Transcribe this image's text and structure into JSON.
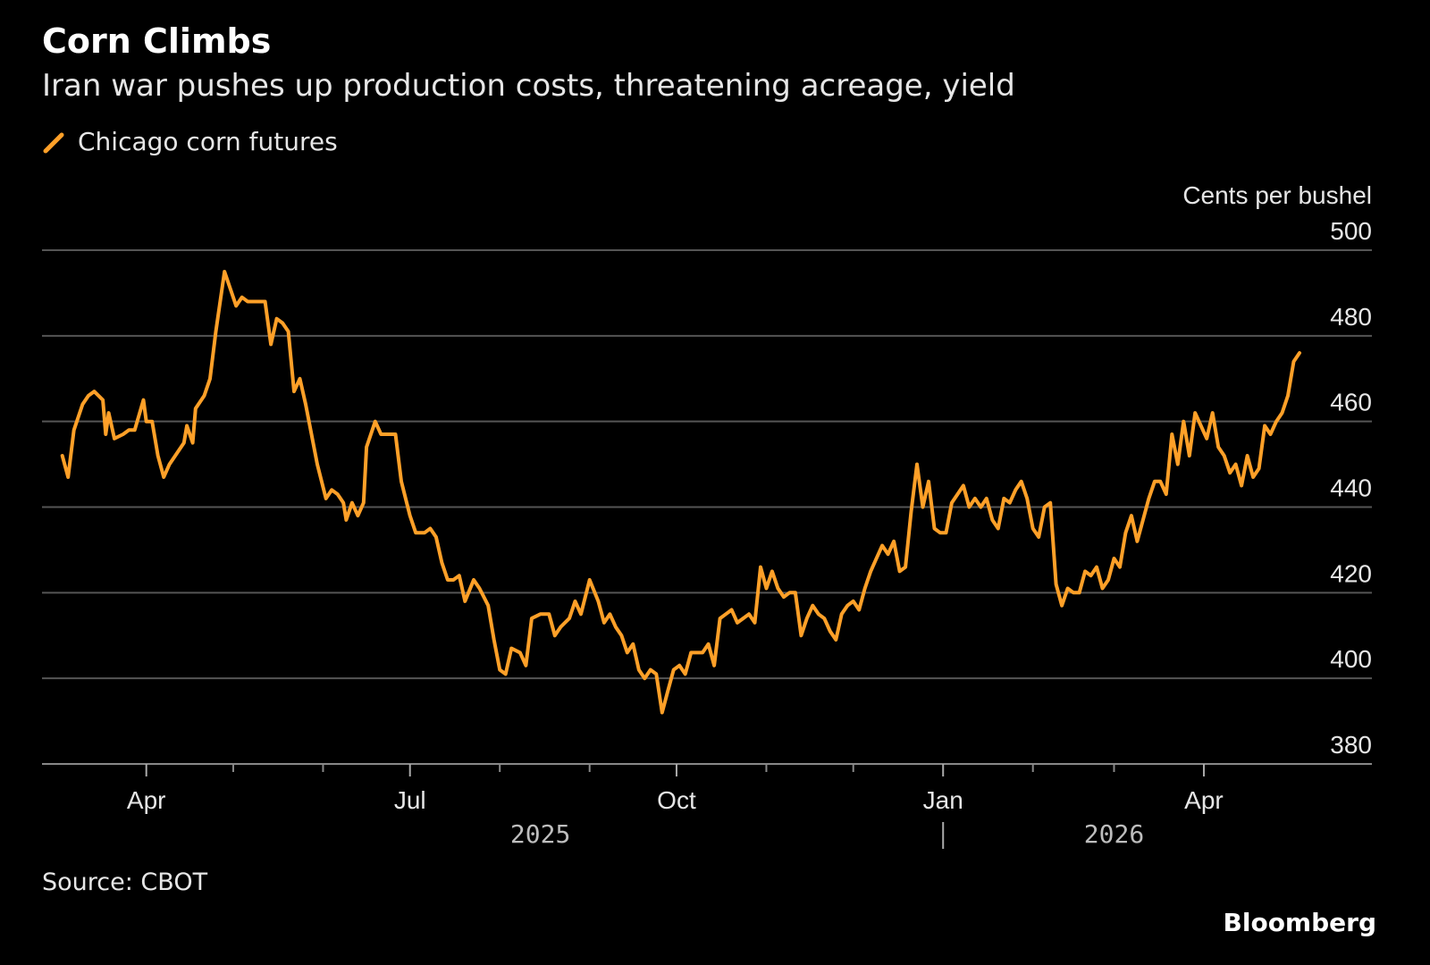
{
  "header": {
    "title": "Corn Climbs",
    "subtitle": "Iran war pushes up production costs, threatening acreage, yield"
  },
  "footer": {
    "source": "Source: CBOT",
    "brand": "Bloomberg"
  },
  "colors": {
    "background": "#000000",
    "series": "#ffa028",
    "grid": "#555555",
    "text": "#e6e6e6"
  },
  "chart_data": {
    "type": "line",
    "title": "Corn Climbs",
    "subtitle": "Iran war pushes up production costs, threatening acreage, yield",
    "ylabel": "Cents per bushel",
    "xlabel": "",
    "ylim": [
      380,
      500
    ],
    "y_ticks": [
      380,
      400,
      420,
      440,
      460,
      480,
      500
    ],
    "y_axis_side": "right",
    "grid": true,
    "legend_placement": "top-left",
    "x_range": [
      "2025-02-24",
      "2026-05-29"
    ],
    "x_ticks": [
      {
        "date": "2025-04-01",
        "label": "Apr"
      },
      {
        "date": "2025-07-01",
        "label": "Jul"
      },
      {
        "date": "2025-10-01",
        "label": "Oct"
      },
      {
        "date": "2026-01-01",
        "label": "Jan"
      },
      {
        "date": "2026-04-01",
        "label": "Apr"
      }
    ],
    "minor_ticks": [
      "2025-05-01",
      "2025-06-01",
      "2025-08-01",
      "2025-09-01",
      "2025-11-01",
      "2025-12-01",
      "2026-02-01",
      "2026-03-01"
    ],
    "year_labels": [
      {
        "label": "2025",
        "center": "2025-08-15"
      },
      {
        "label": "2026",
        "center": "2026-03-01"
      }
    ],
    "year_divider": "2026-01-01",
    "series": [
      {
        "name": "Chicago corn futures",
        "points": [
          [
            "2025-03-03",
            452
          ],
          [
            "2025-03-05",
            447
          ],
          [
            "2025-03-07",
            458
          ],
          [
            "2025-03-10",
            464
          ],
          [
            "2025-03-12",
            466
          ],
          [
            "2025-03-14",
            467
          ],
          [
            "2025-03-17",
            465
          ],
          [
            "2025-03-18",
            457
          ],
          [
            "2025-03-19",
            462
          ],
          [
            "2025-03-21",
            456
          ],
          [
            "2025-03-24",
            457
          ],
          [
            "2025-03-26",
            458
          ],
          [
            "2025-03-28",
            458
          ],
          [
            "2025-03-31",
            465
          ],
          [
            "2025-04-01",
            460
          ],
          [
            "2025-04-03",
            460
          ],
          [
            "2025-04-05",
            452
          ],
          [
            "2025-04-07",
            447
          ],
          [
            "2025-04-09",
            450
          ],
          [
            "2025-04-11",
            452
          ],
          [
            "2025-04-14",
            455
          ],
          [
            "2025-04-15",
            459
          ],
          [
            "2025-04-17",
            455
          ],
          [
            "2025-04-18",
            463
          ],
          [
            "2025-04-21",
            466
          ],
          [
            "2025-04-23",
            470
          ],
          [
            "2025-04-25",
            481
          ],
          [
            "2025-04-28",
            495
          ],
          [
            "2025-04-30",
            491
          ],
          [
            "2025-05-02",
            487
          ],
          [
            "2025-05-04",
            489
          ],
          [
            "2025-05-06",
            488
          ],
          [
            "2025-05-08",
            488
          ],
          [
            "2025-05-12",
            488
          ],
          [
            "2025-05-14",
            478
          ],
          [
            "2025-05-16",
            484
          ],
          [
            "2025-05-18",
            483
          ],
          [
            "2025-05-20",
            481
          ],
          [
            "2025-05-22",
            467
          ],
          [
            "2025-05-24",
            470
          ],
          [
            "2025-05-26",
            464
          ],
          [
            "2025-05-28",
            457
          ],
          [
            "2025-05-30",
            450
          ],
          [
            "2025-06-02",
            442
          ],
          [
            "2025-06-04",
            444
          ],
          [
            "2025-06-06",
            443
          ],
          [
            "2025-06-08",
            441
          ],
          [
            "2025-06-09",
            437
          ],
          [
            "2025-06-11",
            441
          ],
          [
            "2025-06-13",
            438
          ],
          [
            "2025-06-15",
            441
          ],
          [
            "2025-06-16",
            454
          ],
          [
            "2025-06-19",
            460
          ],
          [
            "2025-06-21",
            457
          ],
          [
            "2025-06-24",
            457
          ],
          [
            "2025-06-26",
            457
          ],
          [
            "2025-06-28",
            446
          ],
          [
            "2025-07-01",
            438
          ],
          [
            "2025-07-03",
            434
          ],
          [
            "2025-07-06",
            434
          ],
          [
            "2025-07-08",
            435
          ],
          [
            "2025-07-10",
            433
          ],
          [
            "2025-07-12",
            427
          ],
          [
            "2025-07-14",
            423
          ],
          [
            "2025-07-16",
            423
          ],
          [
            "2025-07-18",
            424
          ],
          [
            "2025-07-20",
            418
          ],
          [
            "2025-07-23",
            423
          ],
          [
            "2025-07-25",
            421
          ],
          [
            "2025-07-28",
            417
          ],
          [
            "2025-07-30",
            409
          ],
          [
            "2025-08-01",
            402
          ],
          [
            "2025-08-03",
            401
          ],
          [
            "2025-08-05",
            407
          ],
          [
            "2025-08-08",
            406
          ],
          [
            "2025-08-10",
            403
          ],
          [
            "2025-08-12",
            414
          ],
          [
            "2025-08-15",
            415
          ],
          [
            "2025-08-18",
            415
          ],
          [
            "2025-08-20",
            410
          ],
          [
            "2025-08-22",
            412
          ],
          [
            "2025-08-25",
            414
          ],
          [
            "2025-08-27",
            418
          ],
          [
            "2025-08-29",
            415
          ],
          [
            "2025-09-01",
            423
          ],
          [
            "2025-09-04",
            418
          ],
          [
            "2025-09-06",
            413
          ],
          [
            "2025-09-08",
            415
          ],
          [
            "2025-09-10",
            412
          ],
          [
            "2025-09-12",
            410
          ],
          [
            "2025-09-14",
            406
          ],
          [
            "2025-09-16",
            408
          ],
          [
            "2025-09-18",
            402
          ],
          [
            "2025-09-20",
            400
          ],
          [
            "2025-09-22",
            402
          ],
          [
            "2025-09-24",
            401
          ],
          [
            "2025-09-26",
            392
          ],
          [
            "2025-09-28",
            397
          ],
          [
            "2025-09-30",
            402
          ],
          [
            "2025-10-02",
            403
          ],
          [
            "2025-10-04",
            401
          ],
          [
            "2025-10-06",
            406
          ],
          [
            "2025-10-08",
            406
          ],
          [
            "2025-10-10",
            406
          ],
          [
            "2025-10-12",
            408
          ],
          [
            "2025-10-14",
            403
          ],
          [
            "2025-10-16",
            414
          ],
          [
            "2025-10-18",
            415
          ],
          [
            "2025-10-20",
            416
          ],
          [
            "2025-10-22",
            413
          ],
          [
            "2025-10-24",
            414
          ],
          [
            "2025-10-26",
            415
          ],
          [
            "2025-10-28",
            413
          ],
          [
            "2025-10-30",
            426
          ],
          [
            "2025-11-01",
            421
          ],
          [
            "2025-11-03",
            425
          ],
          [
            "2025-11-05",
            421
          ],
          [
            "2025-11-07",
            419
          ],
          [
            "2025-11-09",
            420
          ],
          [
            "2025-11-11",
            420
          ],
          [
            "2025-11-13",
            410
          ],
          [
            "2025-11-15",
            414
          ],
          [
            "2025-11-17",
            417
          ],
          [
            "2025-11-19",
            415
          ],
          [
            "2025-11-21",
            414
          ],
          [
            "2025-11-23",
            411
          ],
          [
            "2025-11-25",
            409
          ],
          [
            "2025-11-27",
            415
          ],
          [
            "2025-11-29",
            417
          ],
          [
            "2025-12-01",
            418
          ],
          [
            "2025-12-03",
            416
          ],
          [
            "2025-12-05",
            421
          ],
          [
            "2025-12-07",
            425
          ],
          [
            "2025-12-09",
            428
          ],
          [
            "2025-12-11",
            431
          ],
          [
            "2025-12-13",
            429
          ],
          [
            "2025-12-15",
            432
          ],
          [
            "2025-12-17",
            425
          ],
          [
            "2025-12-19",
            426
          ],
          [
            "2025-12-21",
            439
          ],
          [
            "2025-12-23",
            450
          ],
          [
            "2025-12-25",
            440
          ],
          [
            "2025-12-27",
            446
          ],
          [
            "2025-12-29",
            435
          ],
          [
            "2025-12-31",
            434
          ],
          [
            "2026-01-02",
            434
          ],
          [
            "2026-01-04",
            441
          ],
          [
            "2026-01-06",
            443
          ],
          [
            "2026-01-08",
            445
          ],
          [
            "2026-01-10",
            440
          ],
          [
            "2026-01-12",
            442
          ],
          [
            "2026-01-14",
            440
          ],
          [
            "2026-01-16",
            442
          ],
          [
            "2026-01-18",
            437
          ],
          [
            "2026-01-20",
            435
          ],
          [
            "2026-01-22",
            442
          ],
          [
            "2026-01-24",
            441
          ],
          [
            "2026-01-26",
            444
          ],
          [
            "2026-01-28",
            446
          ],
          [
            "2026-01-30",
            442
          ],
          [
            "2026-02-01",
            435
          ],
          [
            "2026-02-03",
            433
          ],
          [
            "2026-02-05",
            440
          ],
          [
            "2026-02-07",
            441
          ],
          [
            "2026-02-09",
            422
          ],
          [
            "2026-02-11",
            417
          ],
          [
            "2026-02-13",
            421
          ],
          [
            "2026-02-15",
            420
          ],
          [
            "2026-02-17",
            420
          ],
          [
            "2026-02-19",
            425
          ],
          [
            "2026-02-21",
            424
          ],
          [
            "2026-02-23",
            426
          ],
          [
            "2026-02-25",
            421
          ],
          [
            "2026-02-27",
            423
          ],
          [
            "2026-03-01",
            428
          ],
          [
            "2026-03-03",
            426
          ],
          [
            "2026-03-05",
            434
          ],
          [
            "2026-03-07",
            438
          ],
          [
            "2026-03-09",
            432
          ],
          [
            "2026-03-11",
            437
          ],
          [
            "2026-03-13",
            442
          ],
          [
            "2026-03-15",
            446
          ],
          [
            "2026-03-17",
            446
          ],
          [
            "2026-03-19",
            443
          ],
          [
            "2026-03-21",
            457
          ],
          [
            "2026-03-23",
            450
          ],
          [
            "2026-03-25",
            460
          ],
          [
            "2026-03-27",
            452
          ],
          [
            "2026-03-29",
            462
          ],
          [
            "2026-03-31",
            459
          ],
          [
            "2026-04-02",
            456
          ],
          [
            "2026-04-04",
            462
          ],
          [
            "2026-04-06",
            454
          ],
          [
            "2026-04-08",
            452
          ],
          [
            "2026-04-10",
            448
          ],
          [
            "2026-04-12",
            450
          ],
          [
            "2026-04-14",
            445
          ],
          [
            "2026-04-16",
            452
          ],
          [
            "2026-04-18",
            447
          ],
          [
            "2026-04-20",
            449
          ],
          [
            "2026-04-22",
            459
          ],
          [
            "2026-04-24",
            457
          ],
          [
            "2026-04-26",
            460
          ],
          [
            "2026-04-28",
            462
          ],
          [
            "2026-04-30",
            466
          ],
          [
            "2026-05-02",
            474
          ],
          [
            "2026-05-04",
            476
          ]
        ]
      }
    ]
  }
}
